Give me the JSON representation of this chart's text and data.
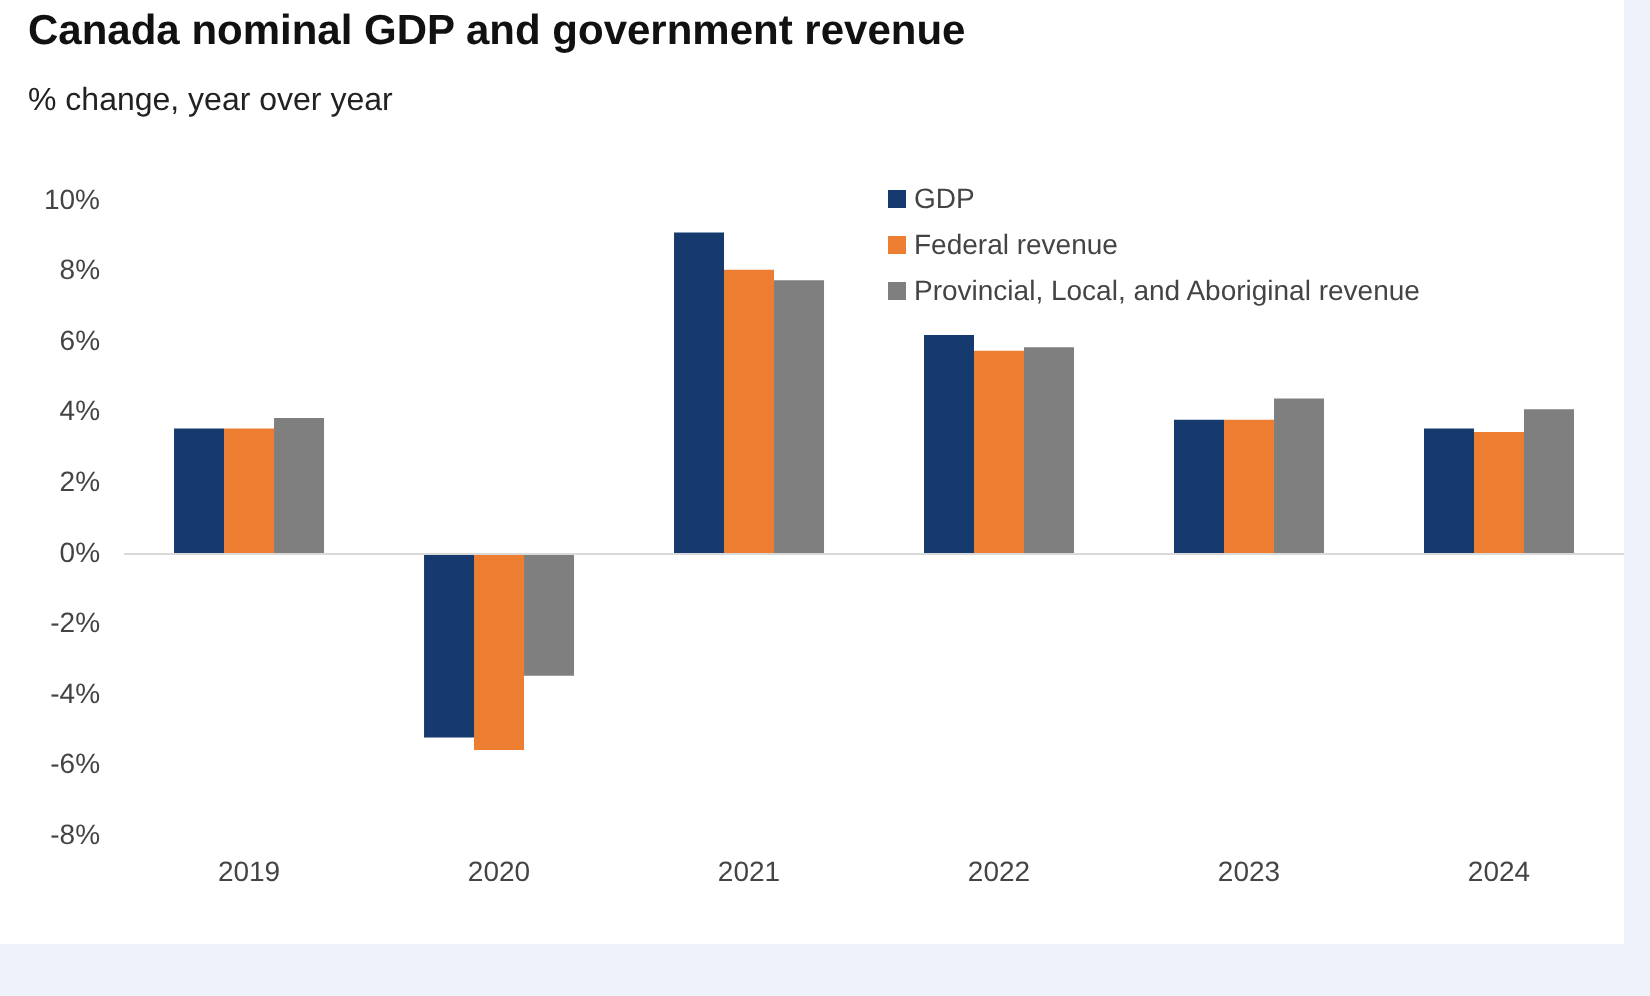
{
  "chart_data": {
    "type": "bar",
    "title": "Canada nominal GDP and government revenue",
    "subtitle": "% change, year over year",
    "categories": [
      "2019",
      "2020",
      "2021",
      "2022",
      "2023",
      "2024"
    ],
    "series": [
      {
        "name": "GDP",
        "color": "#173a6e",
        "values": [
          3.55,
          -5.2,
          9.1,
          6.2,
          3.8,
          3.55
        ]
      },
      {
        "name": "Federal revenue",
        "color": "#ed7d31",
        "values": [
          3.55,
          -5.55,
          8.05,
          5.75,
          3.8,
          3.45
        ]
      },
      {
        "name": "Provincial, Local, and Aboriginal revenue",
        "color": "#7f7f7f",
        "values": [
          3.85,
          -3.45,
          7.75,
          5.85,
          4.4,
          4.1
        ]
      }
    ],
    "ylim": [
      -8,
      10
    ],
    "yticks": [
      {
        "value": -8,
        "label": "-8%"
      },
      {
        "value": -6,
        "label": "-6%"
      },
      {
        "value": -4,
        "label": "-4%"
      },
      {
        "value": -2,
        "label": "-2%"
      },
      {
        "value": 0,
        "label": "0%"
      },
      {
        "value": 2,
        "label": "2%"
      },
      {
        "value": 4,
        "label": "4%"
      },
      {
        "value": 6,
        "label": "6%"
      },
      {
        "value": 8,
        "label": "8%"
      },
      {
        "value": 10,
        "label": "10%"
      }
    ],
    "ref_lines": [
      {
        "axis": "y",
        "value": 0,
        "color": "#d9d9d9"
      }
    ],
    "grid": false,
    "legend": "top right"
  }
}
